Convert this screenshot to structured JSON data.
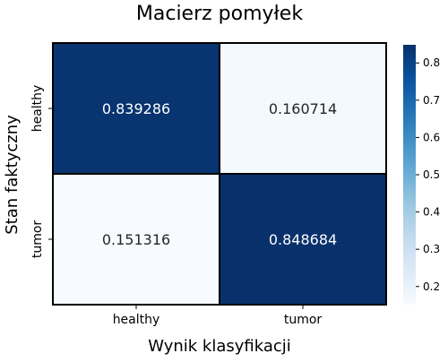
{
  "chart_data": {
    "type": "heatmap",
    "title": "Macierz pomyłek",
    "xlabel": "Wynik klasyfikacji",
    "ylabel": "Stan faktyczny",
    "x_categories": [
      "healthy",
      "tumor"
    ],
    "y_categories": [
      "healthy",
      "tumor"
    ],
    "values": [
      [
        0.839286,
        0.160714
      ],
      [
        0.151316,
        0.848684
      ]
    ],
    "value_labels": [
      [
        "0.839286",
        "0.160714"
      ],
      [
        "0.151316",
        "0.848684"
      ]
    ],
    "colormap": "Blues",
    "color_low": "#f7fbff",
    "color_high": "#08306b",
    "grid_line_color": "#000000",
    "text_color_dark": "#262626",
    "text_color_light": "#ffffff",
    "colorbar": {
      "range": [
        0.151316,
        0.848684
      ],
      "ticks": [
        0.2,
        0.3,
        0.4,
        0.5,
        0.6,
        0.7,
        0.8
      ],
      "tick_labels": [
        "0.2",
        "0.3",
        "0.4",
        "0.5",
        "0.6",
        "0.7",
        "0.8"
      ]
    }
  }
}
